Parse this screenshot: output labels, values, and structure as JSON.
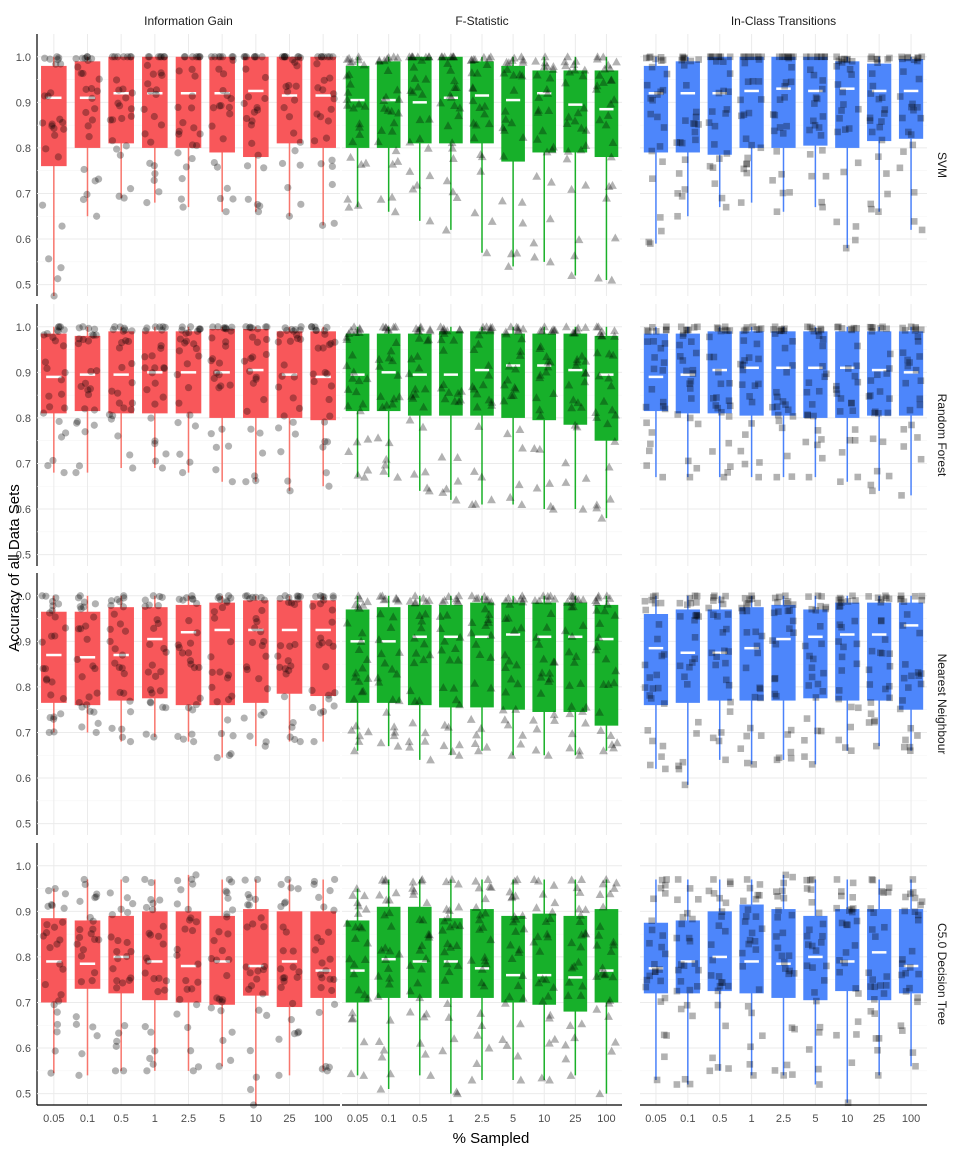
{
  "chart_data": {
    "type": "boxplot-faceted",
    "xlabel": "% Sampled",
    "ylabel": "Accuracy of all Data Sets",
    "categories": [
      "0.05",
      "0.1",
      "0.5",
      "1",
      "2.5",
      "5",
      "10",
      "25",
      "100"
    ],
    "ylim": [
      0.475,
      1.05
    ],
    "yticks": [
      "0.5",
      "0.6",
      "0.7",
      "0.8",
      "0.9",
      "1.0"
    ],
    "grid": true,
    "legend": "none",
    "columns": [
      {
        "name": "Information Gain",
        "color": "#f8766d",
        "fill": "#f8575a",
        "shape": "circle"
      },
      {
        "name": "F-Statistic",
        "color": "#1ab028",
        "fill": "#17b02a",
        "shape": "triangle"
      },
      {
        "name": "In-Class Transitions",
        "color": "#4b82fa",
        "fill": "#4d86fb",
        "shape": "square"
      }
    ],
    "rows": [
      {
        "name": "SVM",
        "panels": [
          {
            "q1": [
              0.76,
              0.8,
              0.81,
              0.8,
              0.8,
              0.79,
              0.78,
              0.81,
              0.8
            ],
            "median": [
              0.91,
              0.91,
              0.92,
              0.92,
              0.92,
              0.92,
              0.925,
              0.915,
              0.915
            ],
            "q3": [
              0.98,
              0.99,
              1.0,
              1.0,
              1.0,
              1.0,
              1.0,
              1.0,
              1.0
            ],
            "min": [
              0.475,
              0.65,
              0.69,
              0.68,
              0.67,
              0.66,
              0.66,
              0.65,
              0.63
            ],
            "max": [
              1.0,
              1.0,
              1.0,
              1.0,
              1.0,
              1.0,
              1.0,
              1.0,
              1.0
            ]
          },
          {
            "q1": [
              0.8,
              0.8,
              0.81,
              0.81,
              0.81,
              0.77,
              0.79,
              0.79,
              0.78
            ],
            "median": [
              0.905,
              0.905,
              0.9,
              0.91,
              0.915,
              0.905,
              0.92,
              0.895,
              0.885
            ],
            "q3": [
              0.98,
              0.99,
              1.0,
              1.0,
              0.99,
              0.98,
              0.97,
              0.97,
              0.97
            ],
            "min": [
              0.67,
              0.66,
              0.64,
              0.62,
              0.57,
              0.54,
              0.55,
              0.52,
              0.51
            ],
            "max": [
              1.0,
              1.0,
              1.0,
              1.0,
              1.0,
              1.0,
              1.0,
              1.0,
              1.0
            ]
          },
          {
            "q1": [
              0.79,
              0.79,
              0.785,
              0.8,
              0.8,
              0.805,
              0.8,
              0.815,
              0.82
            ],
            "median": [
              0.92,
              0.92,
              0.92,
              0.925,
              0.93,
              0.925,
              0.93,
              0.925,
              0.925
            ],
            "q3": [
              0.98,
              0.99,
              1.0,
              1.0,
              1.0,
              1.0,
              0.99,
              0.985,
              0.995
            ],
            "min": [
              0.59,
              0.65,
              0.67,
              0.68,
              0.66,
              0.67,
              0.58,
              0.66,
              0.62
            ],
            "max": [
              1.0,
              1.0,
              1.0,
              1.0,
              1.0,
              1.0,
              1.0,
              1.0,
              1.0
            ]
          }
        ]
      },
      {
        "name": "Random Forest",
        "panels": [
          {
            "q1": [
              0.81,
              0.815,
              0.81,
              0.81,
              0.81,
              0.8,
              0.8,
              0.8,
              0.795
            ],
            "median": [
              0.89,
              0.895,
              0.895,
              0.9,
              0.9,
              0.9,
              0.905,
              0.895,
              0.89
            ],
            "q3": [
              0.985,
              0.98,
              0.99,
              0.99,
              0.99,
              0.995,
              0.995,
              0.99,
              0.99
            ],
            "min": [
              0.68,
              0.68,
              0.69,
              0.69,
              0.68,
              0.66,
              0.66,
              0.64,
              0.65
            ],
            "max": [
              1.0,
              1.0,
              1.0,
              1.0,
              1.0,
              1.0,
              1.0,
              1.0,
              1.0
            ]
          },
          {
            "q1": [
              0.815,
              0.815,
              0.805,
              0.805,
              0.805,
              0.8,
              0.795,
              0.785,
              0.75
            ],
            "median": [
              0.895,
              0.9,
              0.895,
              0.895,
              0.905,
              0.915,
              0.915,
              0.905,
              0.895
            ],
            "q3": [
              0.985,
              0.985,
              0.985,
              0.99,
              0.99,
              0.985,
              0.985,
              0.985,
              0.98
            ],
            "min": [
              0.67,
              0.67,
              0.64,
              0.62,
              0.61,
              0.61,
              0.6,
              0.6,
              0.58
            ],
            "max": [
              1.0,
              1.0,
              1.0,
              1.0,
              1.0,
              1.0,
              1.0,
              1.0,
              1.0
            ]
          },
          {
            "q1": [
              0.815,
              0.81,
              0.81,
              0.805,
              0.805,
              0.8,
              0.8,
              0.805,
              0.805
            ],
            "median": [
              0.89,
              0.895,
              0.905,
              0.91,
              0.91,
              0.91,
              0.91,
              0.905,
              0.9
            ],
            "q3": [
              0.985,
              0.985,
              0.99,
              0.99,
              0.99,
              0.99,
              0.99,
              0.99,
              0.99
            ],
            "min": [
              0.67,
              0.67,
              0.67,
              0.67,
              0.67,
              0.67,
              0.66,
              0.64,
              0.63
            ],
            "max": [
              1.0,
              1.0,
              1.0,
              1.0,
              1.0,
              1.0,
              1.0,
              1.0,
              1.0
            ]
          }
        ]
      },
      {
        "name": "Nearest Neighbour",
        "panels": [
          {
            "q1": [
              0.765,
              0.76,
              0.77,
              0.775,
              0.76,
              0.76,
              0.765,
              0.785,
              0.78
            ],
            "median": [
              0.87,
              0.865,
              0.87,
              0.905,
              0.92,
              0.925,
              0.925,
              0.925,
              0.925
            ],
            "q3": [
              0.965,
              0.965,
              0.975,
              0.975,
              0.98,
              0.985,
              0.99,
              0.99,
              0.99
            ],
            "min": [
              0.7,
              0.7,
              0.68,
              0.69,
              0.68,
              0.645,
              0.67,
              0.68,
              0.68
            ],
            "max": [
              1.0,
              1.0,
              1.0,
              1.0,
              1.0,
              1.0,
              1.0,
              1.0,
              1.0
            ]
          },
          {
            "q1": [
              0.765,
              0.765,
              0.76,
              0.755,
              0.755,
              0.75,
              0.745,
              0.745,
              0.715
            ],
            "median": [
              0.9,
              0.9,
              0.91,
              0.91,
              0.91,
              0.915,
              0.91,
              0.91,
              0.905
            ],
            "q3": [
              0.97,
              0.975,
              0.98,
              0.98,
              0.985,
              0.985,
              0.985,
              0.985,
              0.98
            ],
            "min": [
              0.66,
              0.67,
              0.64,
              0.65,
              0.66,
              0.65,
              0.65,
              0.65,
              0.66
            ],
            "max": [
              1.0,
              1.0,
              1.0,
              1.0,
              1.0,
              1.0,
              1.0,
              1.0,
              1.0
            ]
          },
          {
            "q1": [
              0.76,
              0.765,
              0.77,
              0.77,
              0.77,
              0.775,
              0.77,
              0.77,
              0.75
            ],
            "median": [
              0.885,
              0.875,
              0.875,
              0.885,
              0.905,
              0.91,
              0.915,
              0.915,
              0.935
            ],
            "q3": [
              0.96,
              0.97,
              0.97,
              0.975,
              0.98,
              0.97,
              0.985,
              0.985,
              0.985
            ],
            "min": [
              0.62,
              0.585,
              0.64,
              0.63,
              0.64,
              0.63,
              0.66,
              0.67,
              0.66
            ],
            "max": [
              1.0,
              1.0,
              1.0,
              1.0,
              1.0,
              1.0,
              1.0,
              1.0,
              1.0
            ]
          }
        ]
      },
      {
        "name": "C5.0 Decision Tree",
        "panels": [
          {
            "q1": [
              0.7,
              0.73,
              0.72,
              0.705,
              0.7,
              0.695,
              0.715,
              0.69,
              0.71
            ],
            "median": [
              0.79,
              0.785,
              0.8,
              0.79,
              0.78,
              0.79,
              0.78,
              0.79,
              0.77
            ],
            "q3": [
              0.885,
              0.88,
              0.89,
              0.9,
              0.9,
              0.89,
              0.905,
              0.9,
              0.9
            ],
            "min": [
              0.545,
              0.54,
              0.55,
              0.55,
              0.55,
              0.56,
              0.475,
              0.54,
              0.55
            ],
            "max": [
              0.95,
              0.97,
              0.97,
              0.97,
              0.98,
              0.97,
              0.97,
              0.97,
              0.97
            ]
          },
          {
            "q1": [
              0.7,
              0.71,
              0.71,
              0.71,
              0.71,
              0.7,
              0.695,
              0.68,
              0.7
            ],
            "median": [
              0.77,
              0.795,
              0.79,
              0.79,
              0.775,
              0.76,
              0.76,
              0.755,
              0.77
            ],
            "q3": [
              0.88,
              0.91,
              0.91,
              0.885,
              0.905,
              0.89,
              0.895,
              0.89,
              0.905
            ],
            "min": [
              0.54,
              0.51,
              0.54,
              0.5,
              0.53,
              0.53,
              0.53,
              0.54,
              0.5
            ],
            "max": [
              0.95,
              0.97,
              0.97,
              0.97,
              0.97,
              0.97,
              0.97,
              0.97,
              0.97
            ]
          },
          {
            "q1": [
              0.72,
              0.72,
              0.725,
              0.72,
              0.71,
              0.705,
              0.725,
              0.705,
              0.72
            ],
            "median": [
              0.775,
              0.79,
              0.8,
              0.79,
              0.785,
              0.8,
              0.79,
              0.81,
              0.78
            ],
            "q3": [
              0.875,
              0.88,
              0.9,
              0.915,
              0.905,
              0.89,
              0.905,
              0.905,
              0.905
            ],
            "min": [
              0.53,
              0.52,
              0.55,
              0.54,
              0.54,
              0.52,
              0.48,
              0.54,
              0.56
            ],
            "max": [
              0.97,
              0.97,
              0.97,
              0.97,
              0.98,
              0.97,
              0.97,
              0.97,
              0.97
            ]
          }
        ]
      }
    ]
  }
}
